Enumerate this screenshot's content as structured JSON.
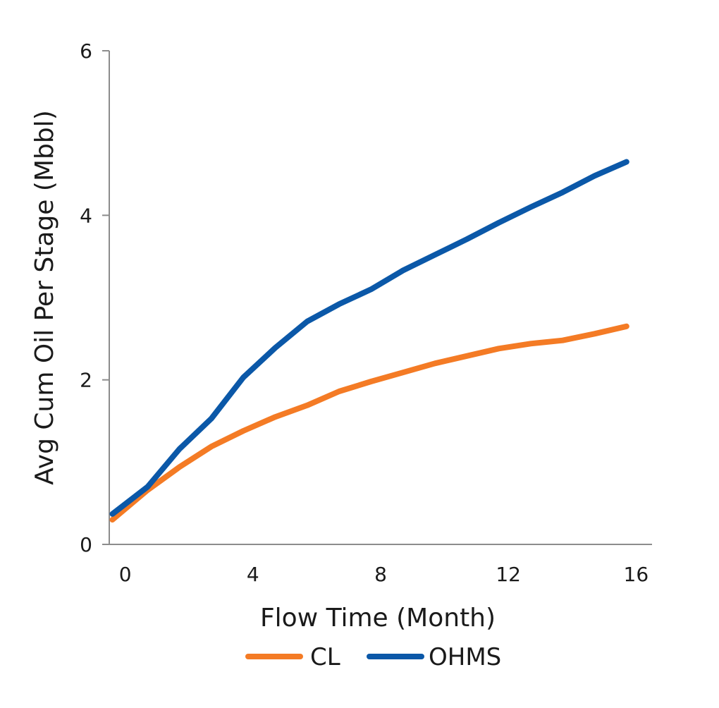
{
  "chart_data": {
    "type": "line",
    "xlabel": "Flow Time (Month)",
    "ylabel": "Avg Cum Oil  Per Stage (Mbbl)",
    "xlim": [
      -0.5,
      16.5
    ],
    "ylim": [
      0,
      6
    ],
    "xticks": [
      "0",
      "4",
      "8",
      "12",
      "16"
    ],
    "xtick_values": [
      0,
      4,
      8,
      12,
      16
    ],
    "yticks": [
      "0",
      "2",
      "4",
      "6"
    ],
    "ytick_values": [
      0,
      2,
      4,
      6
    ],
    "grid": false,
    "legend_position": "bottom",
    "x": [
      -0.4,
      0.7,
      1.7,
      2.7,
      3.7,
      4.7,
      5.7,
      6.7,
      7.7,
      8.7,
      9.7,
      10.7,
      11.7,
      12.7,
      13.7,
      14.7,
      15.7
    ],
    "series": [
      {
        "name": "CL",
        "color": "#F47B25",
        "values": [
          0.3,
          0.66,
          0.94,
          1.19,
          1.38,
          1.55,
          1.69,
          1.86,
          1.98,
          2.09,
          2.2,
          2.29,
          2.38,
          2.44,
          2.48,
          2.56,
          2.65
        ]
      },
      {
        "name": "OHMS",
        "color": "#0B58A8",
        "values": [
          0.37,
          0.7,
          1.16,
          1.53,
          2.03,
          2.39,
          2.71,
          2.92,
          3.1,
          3.33,
          3.52,
          3.71,
          3.91,
          4.1,
          4.28,
          4.48,
          4.65
        ]
      }
    ]
  }
}
